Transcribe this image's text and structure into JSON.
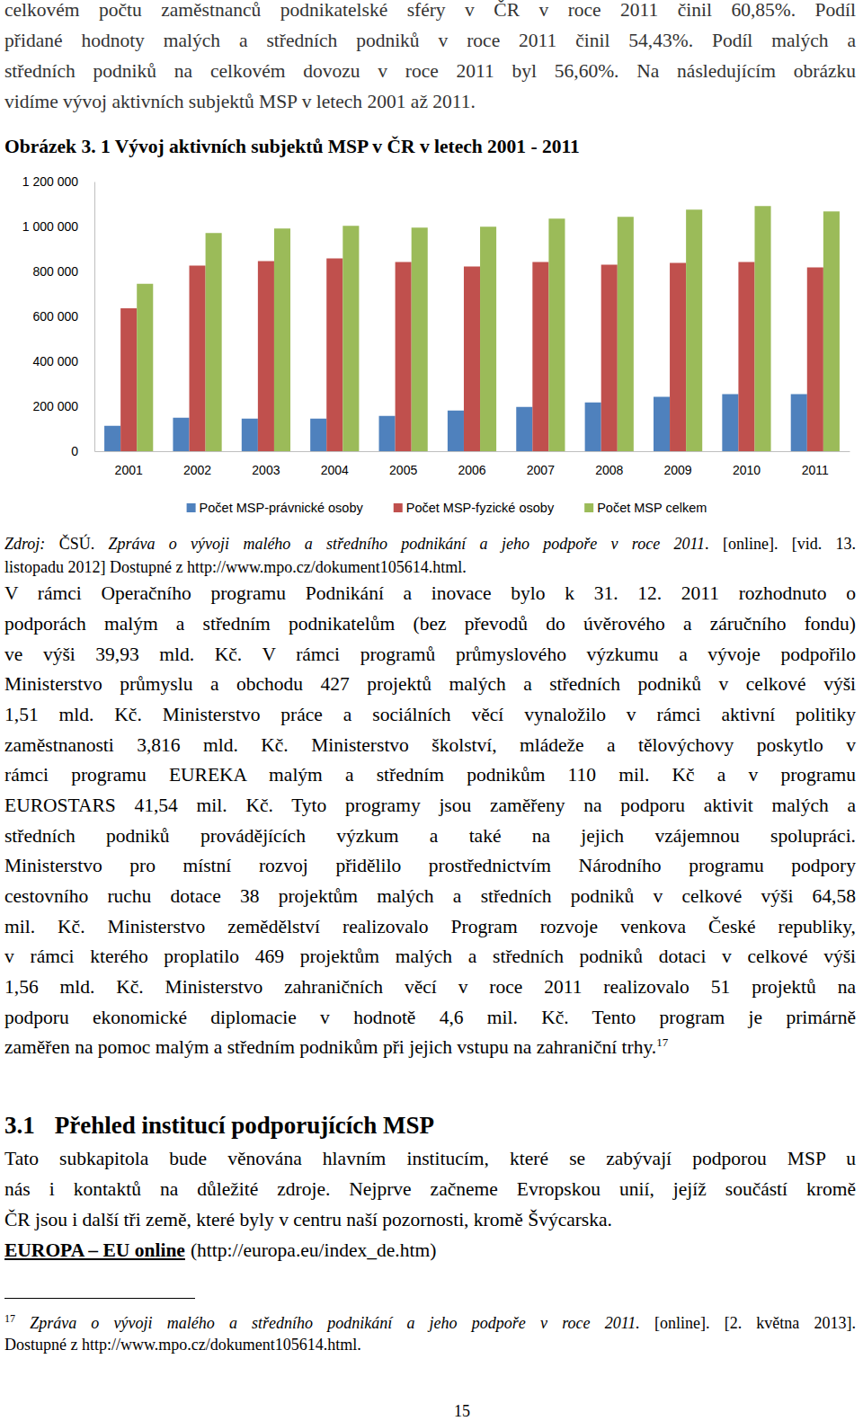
{
  "intro_lines": [
    "celkovém počtu zaměstnanců podnikatelské sféry v ČR v roce 2011 činil 60,85%. Podíl",
    "přidané hodnoty malých a středních podniků v roce 2011 činil 54,43%. Podíl malých a",
    "středních podniků na celkovém dovozu v roce 2011 byl 56,60%. Na následujícím obrázku",
    "vidíme vývoj aktivních subjektů MSP v letech 2001 až 2011."
  ],
  "chart_data": {
    "type": "bar",
    "title": "Obrázek 3. 1 Vývoj aktivních subjektů MSP v ČR v letech 2001 - 2011",
    "categories": [
      "2001",
      "2002",
      "2003",
      "2004",
      "2005",
      "2006",
      "2007",
      "2008",
      "2009",
      "2010",
      "2011"
    ],
    "series": [
      {
        "name": "Počet MSP-právnické osoby",
        "color": "#4f81bd",
        "values": [
          113000,
          149000,
          145000,
          145000,
          157000,
          181000,
          197000,
          217000,
          242000,
          254000,
          254000
        ]
      },
      {
        "name": "Počet MSP-fyzické osoby",
        "color": "#c0504d",
        "values": [
          636000,
          826000,
          846000,
          858000,
          842000,
          822000,
          842000,
          830000,
          838000,
          842000,
          818000
        ]
      },
      {
        "name": "Počet MSP celkem",
        "color": "#9bbb59",
        "values": [
          745000,
          971000,
          991000,
          1003000,
          995000,
          999000,
          1035000,
          1043000,
          1075000,
          1091000,
          1067000
        ]
      }
    ],
    "ylim": [
      0,
      1200000
    ],
    "yticks": [
      0,
      {
        "value": 200000,
        "label": "200 000"
      },
      {
        "value": 400000,
        "label": "400 000"
      },
      {
        "value": 600000,
        "label": "600 000"
      },
      {
        "value": 800000,
        "label": "800 000"
      },
      {
        "value": 1000000,
        "label": "1 000 000"
      },
      {
        "value": 1200000,
        "label": "1 200 000"
      }
    ],
    "grid": false,
    "legend": "bottom"
  },
  "source_lines": [
    [
      {
        "text": "Zdroj:",
        "style": "italic"
      },
      {
        "text": " ČSÚ. "
      },
      {
        "text": "Zpráva o vývoji malého a středního podnikání a jeho podpoře v roce 2011",
        "style": "italic"
      },
      {
        "text": ". [online]. [vid. 13."
      }
    ],
    [
      {
        "text": "listopadu 2012] Dostupné z http://www.mpo.cz/dokument105614.html."
      }
    ]
  ],
  "paragraph_lines": [
    "V rámci Operačního programu Podnikání a inovace bylo k 31. 12. 2011 rozhodnuto o",
    "podporách malým a středním podnikatelům (bez převodů do úvěrového a záručního fondu)",
    "ve výši 39,93 mld. Kč. V rámci programů průmyslového výzkumu a vývoje podpořilo",
    "Ministerstvo průmyslu a obchodu 427 projektů malých a středních podniků v celkové výši",
    "1,51 mld. Kč.  Ministerstvo práce a sociálních věcí vynaložilo v rámci aktivní politiky",
    "zaměstnanosti 3,816 mld. Kč. Ministerstvo školství, mládeže a tělovýchovy poskytlo v",
    "rámci programu EUREKA malým a středním podnikům 110 mil. Kč a v programu",
    "EUROSTARS 41,54 mil. Kč. Tyto programy jsou zaměřeny na podporu aktivit malých a",
    "středních podniků provádějících výzkum a také na jejich vzájemnou spolupráci.",
    "Ministerstvo pro místní rozvoj přidělilo prostřednictvím Národního programu podpory",
    "cestovního ruchu dotace 38 projektům malých a středních podniků v celkové výši 64,58",
    "mil. Kč. Ministerstvo zemědělství realizovalo Program rozvoje venkova České republiky,",
    "v rámci kterého proplatilo 469 projektům malých a středních podniků dotaci v celkové výši",
    "1,56 mld. Kč. Ministerstvo zahraničních věcí v roce 2011 realizovalo 51 projektů na",
    "podporu ekonomické diplomacie v hodnotě 4,6 mil. Kč. Tento program je primárně",
    "zaměřen na pomoc malým a středním podnikům při jejich vstupu na zahraniční trhy."
  ],
  "footnote_ref": "17",
  "section": {
    "number": "3.1",
    "title": "Přehled institucí podporujících MSP"
  },
  "section_lines": [
    "Tato subkapitola bude věnována hlavním institucím, které se zabývají podporou MSP u",
    "nás i kontaktů na důležité zdroje. Nejprve začneme Evropskou unií, jejíž součástí kromě",
    "ČR jsou i další tři země, které byly v centru naší pozornosti, kromě Švýcarska."
  ],
  "link": {
    "title": "EUROPA – EU online",
    "url": "(http://europa.eu/index_de.htm)"
  },
  "footnote": {
    "number": "17",
    "lines": [
      [
        {
          "text": " Zpráva o vývoji malého a středního podnikání a jeho podpoře v roce 2011.",
          "style": "italic"
        },
        {
          "text": "  [online]. [2. května 2013]."
        }
      ],
      [
        {
          "text": "Dostupné z http://www.mpo.cz/dokument105614.html."
        }
      ]
    ]
  },
  "page_number": "15"
}
